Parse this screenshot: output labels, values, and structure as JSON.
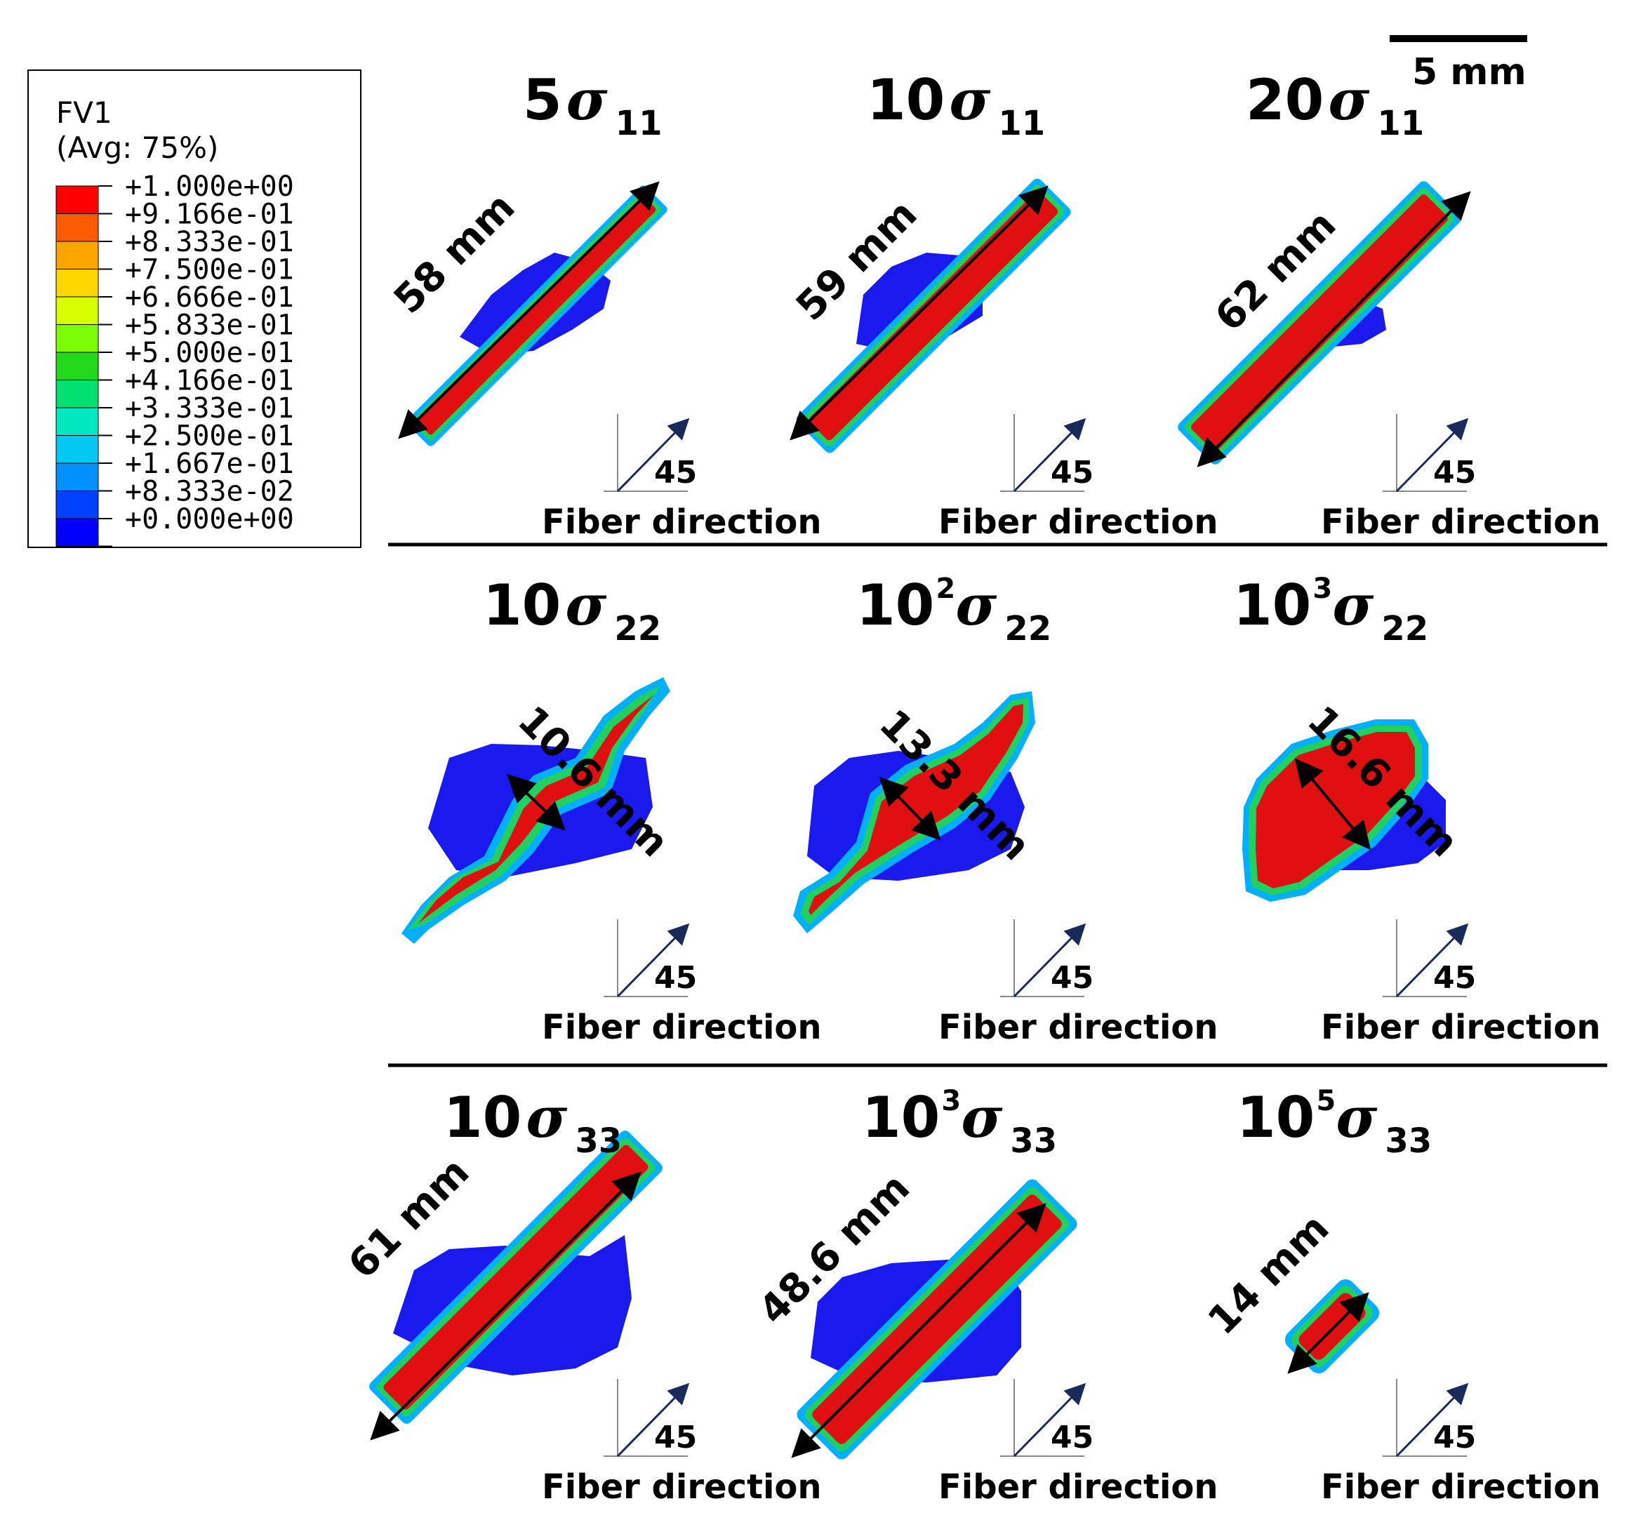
{
  "legend": {
    "title": "FV1",
    "subtitle": "(Avg: 75%)",
    "entries": [
      {
        "value": "+1.000e+00",
        "color": "#ff0000"
      },
      {
        "value": "+9.166e-01",
        "color": "#ff5a00"
      },
      {
        "value": "+8.333e-01",
        "color": "#ffa500"
      },
      {
        "value": "+7.500e-01",
        "color": "#ffd700"
      },
      {
        "value": "+6.666e-01",
        "color": "#d8ff00"
      },
      {
        "value": "+5.833e-01",
        "color": "#7cfc00"
      },
      {
        "value": "+5.000e-01",
        "color": "#22d81a"
      },
      {
        "value": "+4.166e-01",
        "color": "#00e070"
      },
      {
        "value": "+3.333e-01",
        "color": "#00e8c0"
      },
      {
        "value": "+2.500e-01",
        "color": "#00c8f0"
      },
      {
        "value": "+1.667e-01",
        "color": "#0090ff"
      },
      {
        "value": "+8.333e-02",
        "color": "#0040ff"
      },
      {
        "value": "+0.000e+00",
        "color": "#0000ff"
      }
    ]
  },
  "scale_bar": {
    "label": "5 mm"
  },
  "colors": {
    "damage": "#e01010",
    "undamaged": "#1a1aee",
    "band": "#20d060",
    "edge": "#00b0ff",
    "arrow_axis": "#1a2a5a"
  },
  "panels": [
    {
      "coef": "5",
      "exp": "",
      "sub": "11",
      "dim": "58 mm",
      "fiber": "Fiber direction",
      "angle": "45"
    },
    {
      "coef": "10",
      "exp": "",
      "sub": "11",
      "dim": "59 mm",
      "fiber": "Fiber direction",
      "angle": "45"
    },
    {
      "coef": "20",
      "exp": "",
      "sub": "11",
      "dim": "62 mm",
      "fiber": "Fiber direction",
      "angle": "45"
    },
    {
      "coef": "10",
      "exp": "",
      "sub": "22",
      "dim": "10.6 mm",
      "fiber": "Fiber direction",
      "angle": "45"
    },
    {
      "coef": "10",
      "exp": "2",
      "sub": "22",
      "dim": "13.3 mm",
      "fiber": "Fiber direction",
      "angle": "45"
    },
    {
      "coef": "10",
      "exp": "3",
      "sub": "22",
      "dim": "16.6 mm",
      "fiber": "Fiber direction",
      "angle": "45"
    },
    {
      "coef": "10",
      "exp": "",
      "sub": "33",
      "dim": "61 mm",
      "fiber": "Fiber direction",
      "angle": "45"
    },
    {
      "coef": "10",
      "exp": "3",
      "sub": "33",
      "dim": "48.6 mm",
      "fiber": "Fiber direction",
      "angle": "45"
    },
    {
      "coef": "10",
      "exp": "5",
      "sub": "33",
      "dim": "14 mm",
      "fiber": "Fiber direction",
      "angle": "45"
    }
  ]
}
